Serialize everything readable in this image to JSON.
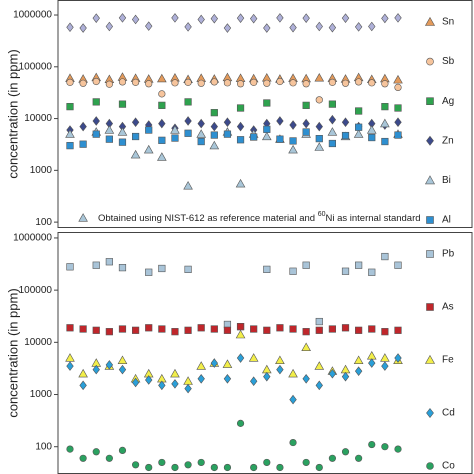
{
  "chart_data": [
    {
      "type": "scatter",
      "y_label": "concentration (in ppm)",
      "log_scale": true,
      "ylim": [
        77,
        1950000
      ],
      "yticks": [
        100,
        1000,
        10000,
        100000,
        1000000
      ],
      "categories": [
        null,
        null,
        null,
        null,
        null,
        null,
        null,
        null,
        null,
        null,
        null,
        null,
        null,
        null,
        null,
        null,
        null,
        null,
        null,
        null,
        null,
        null,
        null,
        null,
        null,
        null
      ],
      "annotation": {
        "before": "Obtained using NIST-612 as reference material and ",
        "superscript": "60",
        "after": "Ni as internal standard"
      },
      "series": [
        {
          "color": "#aeb0d8",
          "marker": "diamond",
          "values": [
            580000,
            560000,
            870000,
            600000,
            880000,
            820000,
            610000,
            null,
            880000,
            590000,
            820000,
            850000,
            560000,
            870000,
            850000,
            560000,
            880000,
            570000,
            870000,
            600000,
            570000,
            870000,
            590000,
            600000,
            860000,
            880000
          ]
        },
        {
          "name": "Sn",
          "color": "#e39a5b",
          "marker": "triangle",
          "values": [
            60000,
            58000,
            62000,
            57000,
            63000,
            60000,
            58000,
            59000,
            61000,
            57000,
            60000,
            58000,
            62000,
            60000,
            59000,
            61000,
            58000,
            60000,
            59000,
            61000,
            60000,
            58000,
            62000,
            57000,
            59000,
            56000
          ]
        },
        {
          "name": "Sb",
          "color": "#f6c49c",
          "marker": "circle",
          "values": [
            50000,
            48000,
            52000,
            46000,
            51000,
            50000,
            47000,
            30000,
            49000,
            50000,
            48000,
            51000,
            49000,
            47000,
            50000,
            48000,
            52000,
            49000,
            47000,
            23000,
            50000,
            48000,
            51000,
            49000,
            47000,
            40000
          ]
        },
        {
          "name": "Ag",
          "color": "#2ea24e",
          "marker": "square",
          "values": [
            17000,
            null,
            21000,
            null,
            19000,
            null,
            null,
            18000,
            null,
            21000,
            null,
            13000,
            null,
            16000,
            null,
            20000,
            null,
            null,
            18000,
            null,
            19000,
            null,
            14000,
            null,
            17000,
            16000
          ]
        },
        {
          "name": "Zn",
          "color": "#3c4a8c",
          "marker": "diamond",
          "values": [
            6000,
            7000,
            9000,
            8000,
            7000,
            8500,
            7500,
            8000,
            6500,
            9000,
            8000,
            7000,
            8500,
            7000,
            6000,
            8000,
            9000,
            7500,
            8000,
            7000,
            9500,
            8500,
            7000,
            8000,
            7500,
            8500
          ]
        },
        {
          "name": "Bi",
          "color": "#a9c6d8",
          "marker": "triangle",
          "values": [
            5000,
            120,
            5500,
            6000,
            5500,
            2000,
            2500,
            1800,
            6000,
            500,
            5000,
            3000,
            5500,
            550,
            5000,
            4500,
            4000,
            2500,
            5000,
            2800,
            5500,
            4500,
            5000,
            6000,
            8000,
            5000
          ]
        },
        {
          "name": "Al",
          "color": "#2e8fd0",
          "marker": "square",
          "values": [
            3000,
            3200,
            5000,
            4000,
            3500,
            4500,
            6000,
            3800,
            4200,
            5200,
            3600,
            4800,
            5000,
            3900,
            4400,
            6200,
            4000,
            3700,
            5500,
            4100,
            3300,
            4700,
            6800,
            4300,
            3600,
            4800
          ]
        }
      ]
    },
    {
      "type": "scatter",
      "y_label": "concentration (in ppm)",
      "log_scale": true,
      "ylim": [
        30,
        1300000
      ],
      "yticks": [
        100,
        1000,
        10000,
        100000,
        1000000
      ],
      "categories": [
        null,
        null,
        null,
        null,
        null,
        null,
        null,
        null,
        null,
        null,
        null,
        null,
        null,
        null,
        null,
        null,
        null,
        null,
        null,
        null,
        null,
        null,
        null,
        null,
        null,
        null
      ],
      "series": [
        {
          "name": "Pb",
          "color": "#a9c4d8",
          "marker": "square",
          "values": [
            280000,
            null,
            300000,
            350000,
            270000,
            null,
            220000,
            260000,
            null,
            250000,
            null,
            null,
            22000,
            20000,
            null,
            250000,
            null,
            230000,
            300000,
            25000,
            null,
            230000,
            300000,
            220000,
            440000,
            300000
          ]
        },
        {
          "name": "As",
          "color": "#c0262b",
          "marker": "square",
          "values": [
            19000,
            18000,
            17000,
            16000,
            18000,
            17000,
            19000,
            18000,
            16000,
            17000,
            19000,
            18000,
            17000,
            20000,
            18000,
            17000,
            19000,
            18000,
            16000,
            17000,
            18000,
            19000,
            17000,
            18000,
            16000,
            17000
          ]
        },
        {
          "name": "Fe",
          "color": "#f2ee4a",
          "marker": "triangle",
          "values": [
            5000,
            2500,
            4000,
            3500,
            4500,
            2000,
            2500,
            2000,
            2500,
            1800,
            3500,
            4000,
            3800,
            14000,
            5000,
            3000,
            4500,
            2500,
            8000,
            3500,
            2800,
            3000,
            4500,
            5500,
            5000,
            4500
          ]
        },
        {
          "name": "Cd",
          "color": "#2a9fd8",
          "marker": "diamond",
          "values": [
            3500,
            1500,
            3000,
            3700,
            3000,
            1700,
            1900,
            1500,
            1600,
            1300,
            2000,
            4000,
            2000,
            5000,
            1800,
            2200,
            3000,
            800,
            2000,
            1500,
            2500,
            2200,
            2800,
            4000,
            3500,
            5000
          ]
        },
        {
          "name": "Co",
          "color": "#2aa160",
          "marker": "circle",
          "values": [
            90,
            60,
            80,
            60,
            85,
            45,
            40,
            50,
            40,
            45,
            50,
            40,
            40,
            280,
            40,
            50,
            40,
            120,
            50,
            40,
            60,
            80,
            60,
            110,
            100,
            90
          ]
        }
      ]
    }
  ]
}
